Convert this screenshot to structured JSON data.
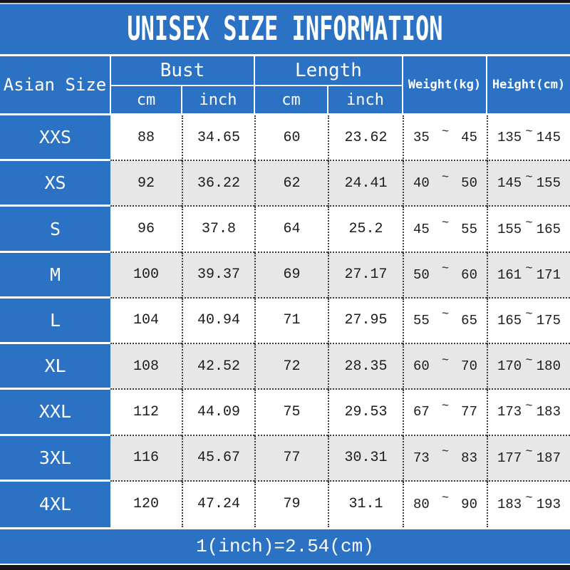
{
  "title": "UNISEX SIZE INFORMATION",
  "footer_note": "1(inch)=2.54(cm)",
  "colors": {
    "primary_blue": "#2b71c4",
    "alt_row_gray": "#e7e7e7",
    "border_bar_black": "#161616",
    "text_dark": "#1c1c1c",
    "text_white": "#ffffff"
  },
  "chart_data": {
    "type": "table",
    "title": "UNISEX SIZE INFORMATION",
    "note": "1(inch)=2.54(cm)",
    "row_header": "Asian Size",
    "range_separator": "~",
    "column_groups": [
      {
        "label": "Bust",
        "children": [
          "cm",
          "inch"
        ]
      },
      {
        "label": "Length",
        "children": [
          "cm",
          "inch"
        ]
      },
      {
        "label": "Weight(kg)"
      },
      {
        "label": "Height(cm)"
      }
    ],
    "rows": [
      {
        "size": "XXS",
        "bust_cm": "88",
        "bust_inch": "34.65",
        "length_cm": "60",
        "length_inch": "23.62",
        "weight_min": "35",
        "weight_max": "45",
        "height_min": "135",
        "height_max": "145"
      },
      {
        "size": "XS",
        "bust_cm": "92",
        "bust_inch": "36.22",
        "length_cm": "62",
        "length_inch": "24.41",
        "weight_min": "40",
        "weight_max": "50",
        "height_min": "145",
        "height_max": "155"
      },
      {
        "size": "S",
        "bust_cm": "96",
        "bust_inch": "37.8",
        "length_cm": "64",
        "length_inch": "25.2",
        "weight_min": "45",
        "weight_max": "55",
        "height_min": "155",
        "height_max": "165"
      },
      {
        "size": "M",
        "bust_cm": "100",
        "bust_inch": "39.37",
        "length_cm": "69",
        "length_inch": "27.17",
        "weight_min": "50",
        "weight_max": "60",
        "height_min": "161",
        "height_max": "171"
      },
      {
        "size": "L",
        "bust_cm": "104",
        "bust_inch": "40.94",
        "length_cm": "71",
        "length_inch": "27.95",
        "weight_min": "55",
        "weight_max": "65",
        "height_min": "165",
        "height_max": "175"
      },
      {
        "size": "XL",
        "bust_cm": "108",
        "bust_inch": "42.52",
        "length_cm": "72",
        "length_inch": "28.35",
        "weight_min": "60",
        "weight_max": "70",
        "height_min": "170",
        "height_max": "180"
      },
      {
        "size": "XXL",
        "bust_cm": "112",
        "bust_inch": "44.09",
        "length_cm": "75",
        "length_inch": "29.53",
        "weight_min": "67",
        "weight_max": "77",
        "height_min": "173",
        "height_max": "183"
      },
      {
        "size": "3XL",
        "bust_cm": "116",
        "bust_inch": "45.67",
        "length_cm": "77",
        "length_inch": "30.31",
        "weight_min": "73",
        "weight_max": "83",
        "height_min": "177",
        "height_max": "187"
      },
      {
        "size": "4XL",
        "bust_cm": "120",
        "bust_inch": "47.24",
        "length_cm": "79",
        "length_inch": "31.1",
        "weight_min": "80",
        "weight_max": "90",
        "height_min": "183",
        "height_max": "193"
      }
    ]
  }
}
